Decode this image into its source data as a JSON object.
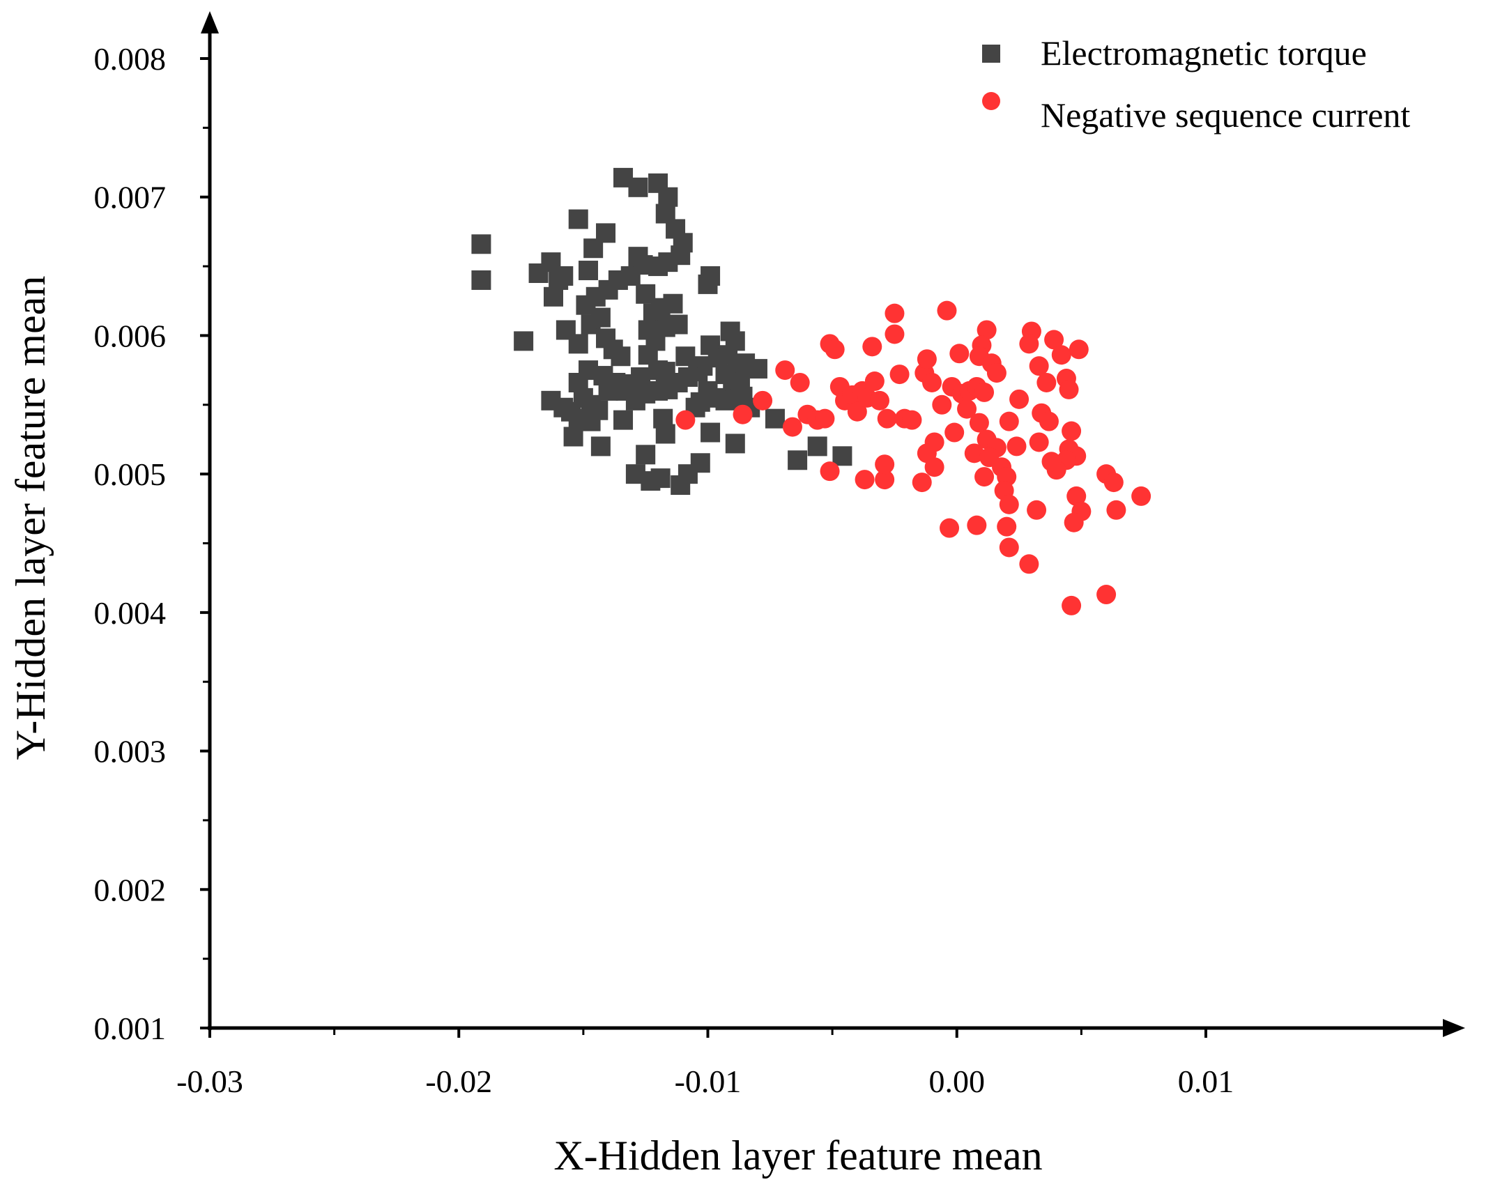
{
  "chart_data": {
    "type": "scatter",
    "title": "",
    "xlabel": "X-Hidden layer feature mean",
    "ylabel": "Y-Hidden layer feature mean",
    "xlim": [
      -0.03,
      0.01
    ],
    "ylim": [
      0.001,
      0.008
    ],
    "x_ticks": [
      "-0.03",
      "-0.02",
      "-0.01",
      "0.00",
      "0.01"
    ],
    "y_ticks": [
      "0.001",
      "0.002",
      "0.003",
      "0.004",
      "0.005",
      "0.006",
      "0.007",
      "0.008"
    ],
    "grid": false,
    "legend_position": "top-right",
    "series": [
      {
        "name": "Electromagnetic torque",
        "marker": "square",
        "color": "#444444",
        "points": [
          [
            -0.0191,
            0.00666
          ],
          [
            -0.0191,
            0.0064
          ],
          [
            -0.0174,
            0.00596
          ],
          [
            -0.0168,
            0.00645
          ],
          [
            -0.0163,
            0.00653
          ],
          [
            -0.016,
            0.0064
          ],
          [
            -0.0162,
            0.00628
          ],
          [
            -0.0158,
            0.00643
          ],
          [
            -0.0152,
            0.00684
          ],
          [
            -0.0148,
            0.00647
          ],
          [
            -0.0146,
            0.00663
          ],
          [
            -0.0141,
            0.00674
          ],
          [
            -0.0136,
            0.0064
          ],
          [
            -0.0131,
            0.00643
          ],
          [
            -0.0128,
            0.00657
          ],
          [
            -0.0126,
            0.00651
          ],
          [
            -0.0134,
            0.00714
          ],
          [
            -0.0128,
            0.00707
          ],
          [
            -0.012,
            0.0071
          ],
          [
            -0.0116,
            0.007
          ],
          [
            -0.0117,
            0.00688
          ],
          [
            -0.0113,
            0.00677
          ],
          [
            -0.011,
            0.00667
          ],
          [
            -0.0111,
            0.00658
          ],
          [
            -0.0116,
            0.00653
          ],
          [
            -0.012,
            0.0065
          ],
          [
            -0.0099,
            0.00643
          ],
          [
            -0.01,
            0.00637
          ],
          [
            -0.014,
            0.00633
          ],
          [
            -0.0145,
            0.00628
          ],
          [
            -0.0149,
            0.00622
          ],
          [
            -0.0143,
            0.00613
          ],
          [
            -0.0147,
            0.00608
          ],
          [
            -0.0141,
            0.00598
          ],
          [
            -0.0157,
            0.00604
          ],
          [
            -0.0152,
            0.00594
          ],
          [
            -0.0138,
            0.0059
          ],
          [
            -0.0135,
            0.00585
          ],
          [
            -0.0125,
            0.0063
          ],
          [
            -0.0122,
            0.00616
          ],
          [
            -0.0119,
            0.0062
          ],
          [
            -0.0114,
            0.00623
          ],
          [
            -0.0117,
            0.00606
          ],
          [
            -0.0112,
            0.00608
          ],
          [
            -0.0124,
            0.00604
          ],
          [
            -0.0121,
            0.00596
          ],
          [
            -0.0124,
            0.00586
          ],
          [
            -0.0109,
            0.00585
          ],
          [
            -0.0099,
            0.00593
          ],
          [
            -0.0091,
            0.00603
          ],
          [
            -0.0089,
            0.00596
          ],
          [
            -0.0092,
            0.00586
          ],
          [
            -0.0096,
            0.00584
          ],
          [
            -0.0088,
            0.00579
          ],
          [
            -0.0085,
            0.0058
          ],
          [
            -0.008,
            0.00576
          ],
          [
            -0.0102,
            0.00578
          ],
          [
            -0.0104,
            0.00574
          ],
          [
            -0.0093,
            0.00572
          ],
          [
            -0.009,
            0.00565
          ],
          [
            -0.0087,
            0.00566
          ],
          [
            -0.0148,
            0.00575
          ],
          [
            -0.0152,
            0.00566
          ],
          [
            -0.0142,
            0.00571
          ],
          [
            -0.0137,
            0.00566
          ],
          [
            -0.013,
            0.00565
          ],
          [
            -0.0127,
            0.0057
          ],
          [
            -0.012,
            0.00575
          ],
          [
            -0.0117,
            0.00574
          ],
          [
            -0.0112,
            0.00566
          ],
          [
            -0.0108,
            0.0057
          ],
          [
            -0.0125,
            0.00558
          ],
          [
            -0.012,
            0.0056
          ],
          [
            -0.0116,
            0.00561
          ],
          [
            -0.0129,
            0.00553
          ],
          [
            -0.014,
            0.0056
          ],
          [
            -0.0133,
            0.0056
          ],
          [
            -0.01,
            0.0056
          ],
          [
            -0.0097,
            0.00555
          ],
          [
            -0.0103,
            0.00552
          ],
          [
            -0.0105,
            0.00548
          ],
          [
            -0.0093,
            0.00553
          ],
          [
            -0.0089,
            0.00554
          ],
          [
            -0.0086,
            0.00556
          ],
          [
            -0.0163,
            0.00553
          ],
          [
            -0.0158,
            0.00548
          ],
          [
            -0.0155,
            0.00545
          ],
          [
            -0.015,
            0.00555
          ],
          [
            -0.0147,
            0.0055
          ],
          [
            -0.0144,
            0.00546
          ],
          [
            -0.0152,
            0.0054
          ],
          [
            -0.0147,
            0.00538
          ],
          [
            -0.0134,
            0.00539
          ],
          [
            -0.0118,
            0.0054
          ],
          [
            -0.0073,
            0.0054
          ],
          [
            -0.0083,
            0.00548
          ],
          [
            -0.0154,
            0.00527
          ],
          [
            -0.0143,
            0.0052
          ],
          [
            -0.0117,
            0.00529
          ],
          [
            -0.0099,
            0.0053
          ],
          [
            -0.0089,
            0.00522
          ],
          [
            -0.0056,
            0.0052
          ],
          [
            -0.0064,
            0.0051
          ],
          [
            -0.0046,
            0.00513
          ],
          [
            -0.0125,
            0.00514
          ],
          [
            -0.0129,
            0.005
          ],
          [
            -0.0123,
            0.00495
          ],
          [
            -0.0119,
            0.00497
          ],
          [
            -0.0111,
            0.00492
          ],
          [
            -0.0108,
            0.005
          ],
          [
            -0.0103,
            0.00508
          ]
        ]
      },
      {
        "name": "Negative sequence current",
        "marker": "circle",
        "color": "#ff3333",
        "points": [
          [
            -0.0109,
            0.00539
          ],
          [
            -0.0086,
            0.00543
          ],
          [
            -0.0078,
            0.00553
          ],
          [
            -0.0069,
            0.00575
          ],
          [
            -0.0063,
            0.00566
          ],
          [
            -0.0066,
            0.00534
          ],
          [
            -0.006,
            0.00543
          ],
          [
            -0.0056,
            0.00539
          ],
          [
            -0.0051,
            0.00594
          ],
          [
            -0.0049,
            0.0059
          ],
          [
            -0.0047,
            0.00563
          ],
          [
            -0.0053,
            0.0054
          ],
          [
            -0.0051,
            0.00502
          ],
          [
            -0.0045,
            0.00553
          ],
          [
            -0.0042,
            0.00557
          ],
          [
            -0.004,
            0.00545
          ],
          [
            -0.0038,
            0.0056
          ],
          [
            -0.0036,
            0.00555
          ],
          [
            -0.0034,
            0.00592
          ],
          [
            -0.0033,
            0.00567
          ],
          [
            -0.0031,
            0.00553
          ],
          [
            -0.0028,
            0.0054
          ],
          [
            -0.0025,
            0.00616
          ],
          [
            -0.0025,
            0.00601
          ],
          [
            -0.0023,
            0.00572
          ],
          [
            -0.0021,
            0.0054
          ],
          [
            -0.0018,
            0.00539
          ],
          [
            -0.0013,
            0.00573
          ],
          [
            -0.0012,
            0.00583
          ],
          [
            -0.001,
            0.00566
          ],
          [
            -0.0006,
            0.0055
          ],
          [
            -0.0009,
            0.00523
          ],
          [
            -0.0012,
            0.00515
          ],
          [
            -0.0014,
            0.00494
          ],
          [
            -0.0009,
            0.00505
          ],
          [
            -0.0037,
            0.00496
          ],
          [
            -0.0029,
            0.00496
          ],
          [
            -0.0029,
            0.00507
          ],
          [
            -0.0004,
            0.00618
          ],
          [
            0.0001,
            0.00587
          ],
          [
            -0.0002,
            0.00563
          ],
          [
            0.0002,
            0.00558
          ],
          [
            0.0005,
            0.0056
          ],
          [
            0.0008,
            0.00563
          ],
          [
            0.0011,
            0.00559
          ],
          [
            0.0012,
            0.00604
          ],
          [
            0.001,
            0.00593
          ],
          [
            0.0009,
            0.00585
          ],
          [
            0.0014,
            0.0058
          ],
          [
            0.0016,
            0.00573
          ],
          [
            0.0004,
            0.00547
          ],
          [
            0.0009,
            0.00537
          ],
          [
            0.0012,
            0.00525
          ],
          [
            0.0016,
            0.00519
          ],
          [
            -0.0001,
            0.0053
          ],
          [
            0.0007,
            0.00515
          ],
          [
            0.0013,
            0.00512
          ],
          [
            0.0011,
            0.00498
          ],
          [
            0.0018,
            0.00505
          ],
          [
            0.002,
            0.00498
          ],
          [
            0.0019,
            0.00488
          ],
          [
            0.0021,
            0.00478
          ],
          [
            0.0024,
            0.0052
          ],
          [
            0.0021,
            0.00538
          ],
          [
            0.0025,
            0.00554
          ],
          [
            0.003,
            0.00603
          ],
          [
            0.0029,
            0.00594
          ],
          [
            0.0033,
            0.00578
          ],
          [
            0.0036,
            0.00566
          ],
          [
            0.0034,
            0.00544
          ],
          [
            0.0037,
            0.00538
          ],
          [
            0.0033,
            0.00523
          ],
          [
            0.0039,
            0.00597
          ],
          [
            0.0042,
            0.00586
          ],
          [
            0.0044,
            0.00569
          ],
          [
            0.0045,
            0.00561
          ],
          [
            0.0049,
            0.0059
          ],
          [
            0.0046,
            0.00531
          ],
          [
            0.0045,
            0.00518
          ],
          [
            0.0048,
            0.00513
          ],
          [
            0.0044,
            0.0051
          ],
          [
            0.004,
            0.00503
          ],
          [
            0.0038,
            0.00509
          ],
          [
            0.0048,
            0.00484
          ],
          [
            0.005,
            0.00473
          ],
          [
            0.0047,
            0.00465
          ],
          [
            0.006,
            0.005
          ],
          [
            0.0063,
            0.00494
          ],
          [
            0.0064,
            0.00474
          ],
          [
            0.0074,
            0.00484
          ],
          [
            -0.0003,
            0.00461
          ],
          [
            0.0008,
            0.00463
          ],
          [
            0.002,
            0.00462
          ],
          [
            0.0032,
            0.00474
          ],
          [
            0.0021,
            0.00447
          ],
          [
            0.0029,
            0.00435
          ],
          [
            0.0046,
            0.00405
          ],
          [
            0.006,
            0.00413
          ]
        ]
      }
    ]
  }
}
